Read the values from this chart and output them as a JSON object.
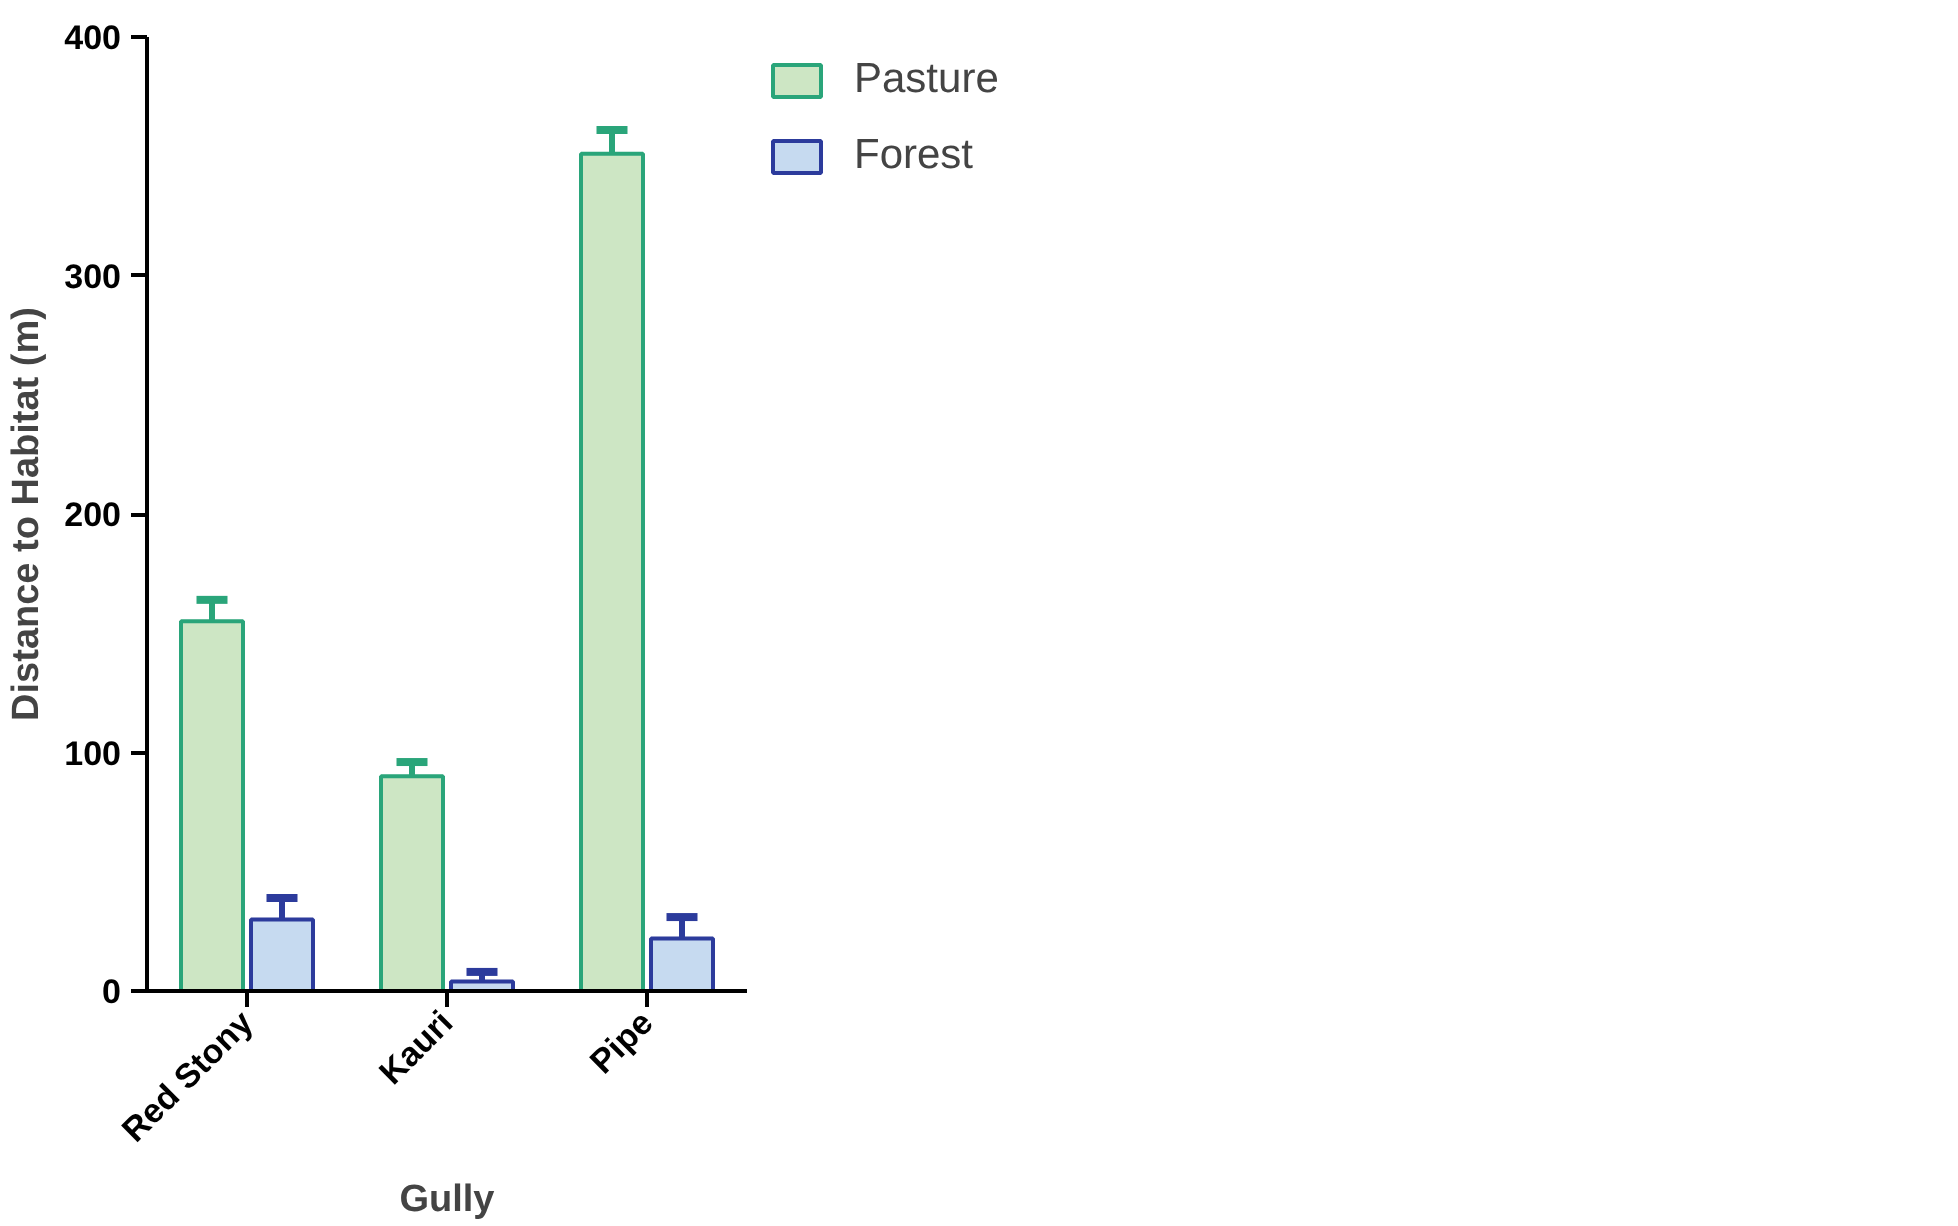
{
  "chart_data": {
    "type": "bar",
    "xlabel": "Gully",
    "ylabel": "Distance to Habitat (m)",
    "categories": [
      "Red Stony",
      "Kauri",
      "Pipe"
    ],
    "series": [
      {
        "name": "Pasture",
        "color": "#cde6c4",
        "values": [
          155,
          90,
          351
        ],
        "errors": [
          [
            155,
            164
          ],
          [
            90,
            96
          ],
          [
            351,
            361
          ]
        ]
      },
      {
        "name": "Forest",
        "color": "#c6daf0",
        "values": [
          30,
          4,
          22
        ],
        "errors": [
          [
            30,
            39
          ],
          [
            4,
            8
          ],
          [
            22,
            31
          ]
        ]
      }
    ],
    "ylim": [
      0,
      400
    ],
    "yticks": [
      0,
      100,
      200,
      300,
      400
    ],
    "grid": false,
    "legend": "top right"
  }
}
